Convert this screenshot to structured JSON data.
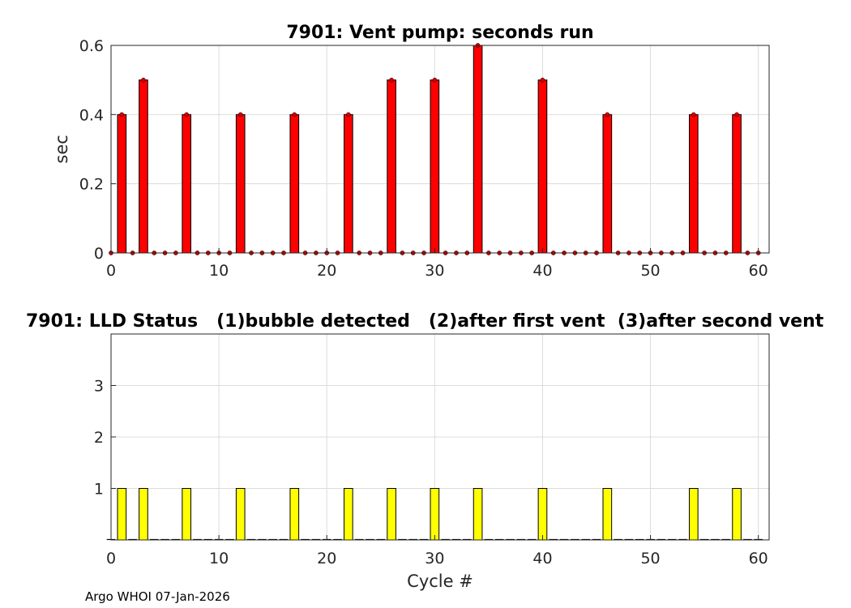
{
  "chart_data": [
    {
      "type": "bar",
      "title": "7901: Vent pump: seconds run",
      "xlabel": "",
      "ylabel": "sec",
      "xlim": [
        0,
        61
      ],
      "ylim": [
        0,
        0.6
      ],
      "xticks": [
        "0",
        "10",
        "20",
        "30",
        "40",
        "50",
        "60"
      ],
      "yticks": [
        "0",
        "0.2",
        "0.4",
        "0.6"
      ],
      "grid": true,
      "bar_color": "#ff0000",
      "marker_color": "#d40000",
      "x": [
        0,
        1,
        2,
        3,
        4,
        5,
        6,
        7,
        8,
        9,
        10,
        11,
        12,
        13,
        14,
        15,
        16,
        17,
        18,
        19,
        20,
        21,
        22,
        23,
        24,
        25,
        26,
        27,
        28,
        29,
        30,
        31,
        32,
        33,
        34,
        35,
        36,
        37,
        38,
        39,
        40,
        41,
        42,
        43,
        44,
        45,
        46,
        47,
        48,
        49,
        50,
        51,
        52,
        53,
        54,
        55,
        56,
        57,
        58,
        59,
        60
      ],
      "values": [
        0,
        0.4,
        0,
        0.5,
        0,
        0,
        0,
        0.4,
        0,
        0,
        0,
        0,
        0.4,
        0,
        0,
        0,
        0,
        0.4,
        0,
        0,
        0,
        0,
        0.4,
        0,
        0,
        0,
        0.5,
        0,
        0,
        0,
        0.5,
        0,
        0,
        0,
        0.6,
        0,
        0,
        0,
        0,
        0,
        0.5,
        0,
        0,
        0,
        0,
        0,
        0.4,
        0,
        0,
        0,
        0,
        0,
        0,
        0,
        0.4,
        0,
        0,
        0,
        0.4,
        0,
        0
      ]
    },
    {
      "type": "bar",
      "title": "7901: LLD Status   (1)bubble detected   (2)after first vent  (3)after second vent",
      "xlabel": "Cycle #",
      "ylabel": "",
      "xlim": [
        0,
        61
      ],
      "ylim": [
        0,
        4
      ],
      "xticks": [
        "0",
        "10",
        "20",
        "30",
        "40",
        "50",
        "60"
      ],
      "yticks": [
        "1",
        "2",
        "3"
      ],
      "grid": true,
      "bar_color": "#ffff00",
      "x": [
        0,
        1,
        2,
        3,
        4,
        5,
        6,
        7,
        8,
        9,
        10,
        11,
        12,
        13,
        14,
        15,
        16,
        17,
        18,
        19,
        20,
        21,
        22,
        23,
        24,
        25,
        26,
        27,
        28,
        29,
        30,
        31,
        32,
        33,
        34,
        35,
        36,
        37,
        38,
        39,
        40,
        41,
        42,
        43,
        44,
        45,
        46,
        47,
        48,
        49,
        50,
        51,
        52,
        53,
        54,
        55,
        56,
        57,
        58,
        59,
        60
      ],
      "values": [
        0,
        1,
        0,
        1,
        0,
        0,
        0,
        1,
        0,
        0,
        0,
        0,
        1,
        0,
        0,
        0,
        0,
        1,
        0,
        0,
        0,
        0,
        1,
        0,
        0,
        0,
        1,
        0,
        0,
        0,
        1,
        0,
        0,
        0,
        1,
        0,
        0,
        0,
        0,
        0,
        1,
        0,
        0,
        0,
        0,
        0,
        1,
        0,
        0,
        0,
        0,
        0,
        0,
        0,
        1,
        0,
        0,
        0,
        1,
        0,
        0
      ]
    }
  ],
  "footer": "Argo WHOI 07-Jan-2026"
}
